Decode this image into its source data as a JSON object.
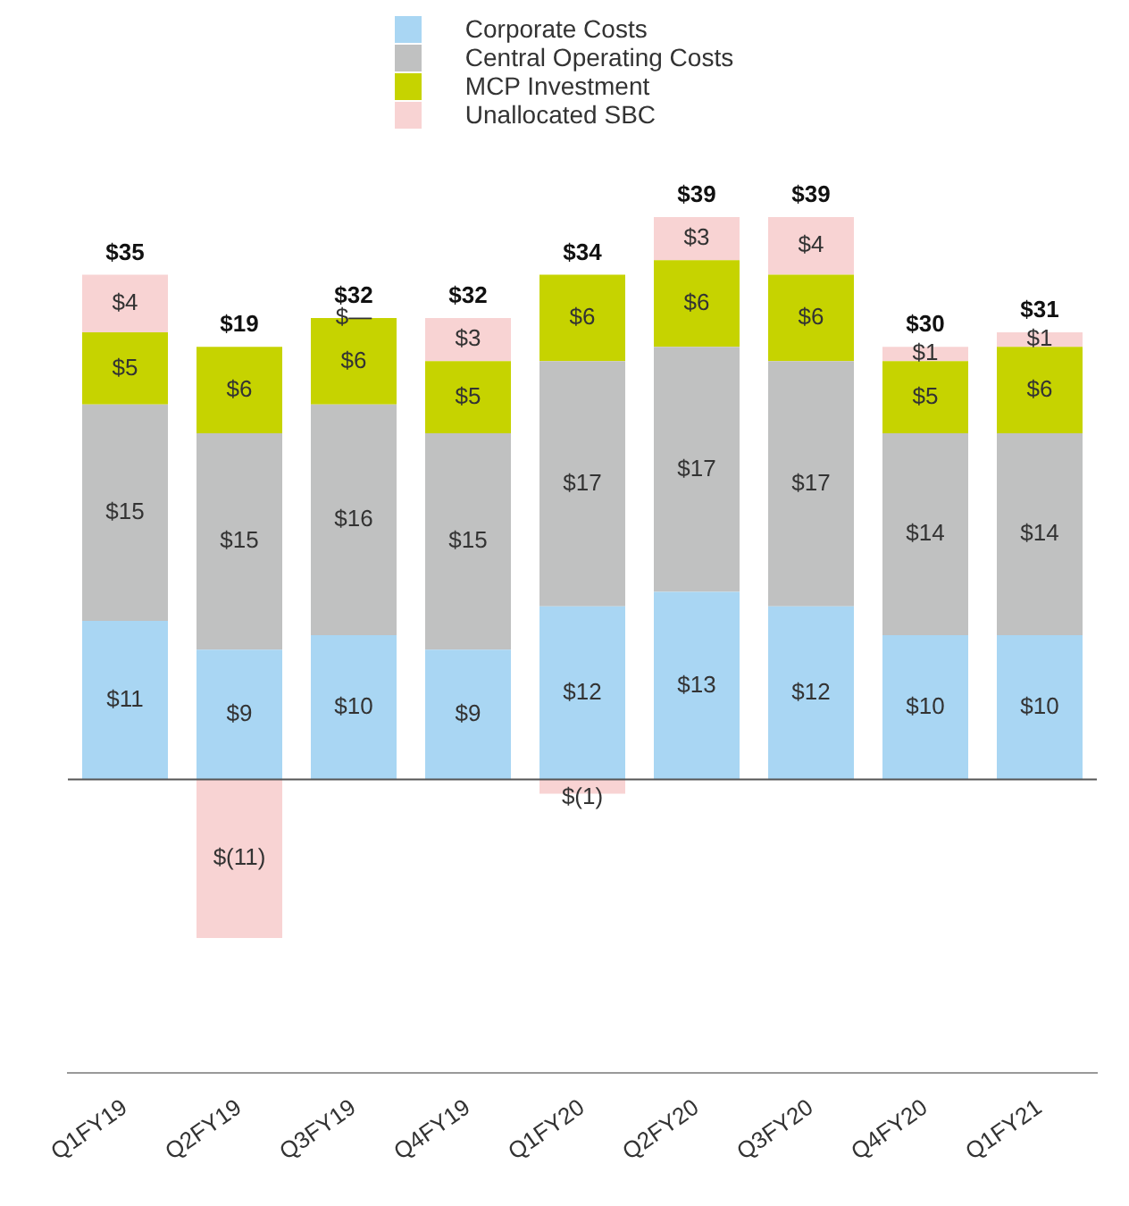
{
  "chart_data": {
    "type": "bar",
    "stacked": true,
    "legend": "top",
    "categories": [
      "Q1FY19",
      "Q2FY19",
      "Q3FY19",
      "Q4FY19",
      "Q1FY20",
      "Q2FY20",
      "Q3FY20",
      "Q4FY20",
      "Q1FY21"
    ],
    "series": [
      {
        "name": "Corporate Costs",
        "color": "#a9d6f3",
        "values": [
          11,
          9,
          10,
          9,
          12,
          13,
          12,
          10,
          10
        ],
        "value_labels": [
          "$11",
          "$9",
          "$10",
          "$9",
          "$12",
          "$13",
          "$12",
          "$10",
          "$10"
        ]
      },
      {
        "name": "Central Operating Costs",
        "color": "#c0c1c1",
        "values": [
          15,
          15,
          16,
          15,
          17,
          17,
          17,
          14,
          14
        ],
        "value_labels": [
          "$15",
          "$15",
          "$16",
          "$15",
          "$17",
          "$17",
          "$17",
          "$14",
          "$14"
        ]
      },
      {
        "name": "MCP Investment",
        "color": "#c6d300",
        "values": [
          5,
          6,
          6,
          5,
          6,
          6,
          6,
          5,
          6
        ],
        "value_labels": [
          "$5",
          "$6",
          "$6",
          "$5",
          "$6",
          "$6",
          "$6",
          "$5",
          "$6"
        ]
      },
      {
        "name": "Unallocated SBC",
        "color": "#f8d3d3",
        "values": [
          4,
          -11,
          0,
          3,
          -1,
          3,
          4,
          1,
          1
        ],
        "value_labels": [
          "$4",
          "$(11)",
          "$—",
          "$3",
          "$(1)",
          "$3",
          "$4",
          "$1",
          "$1"
        ]
      }
    ],
    "totals": [
      "$35",
      "$19",
      "$32",
      "$32",
      "$34",
      "$39",
      "$39",
      "$30",
      "$31"
    ]
  }
}
